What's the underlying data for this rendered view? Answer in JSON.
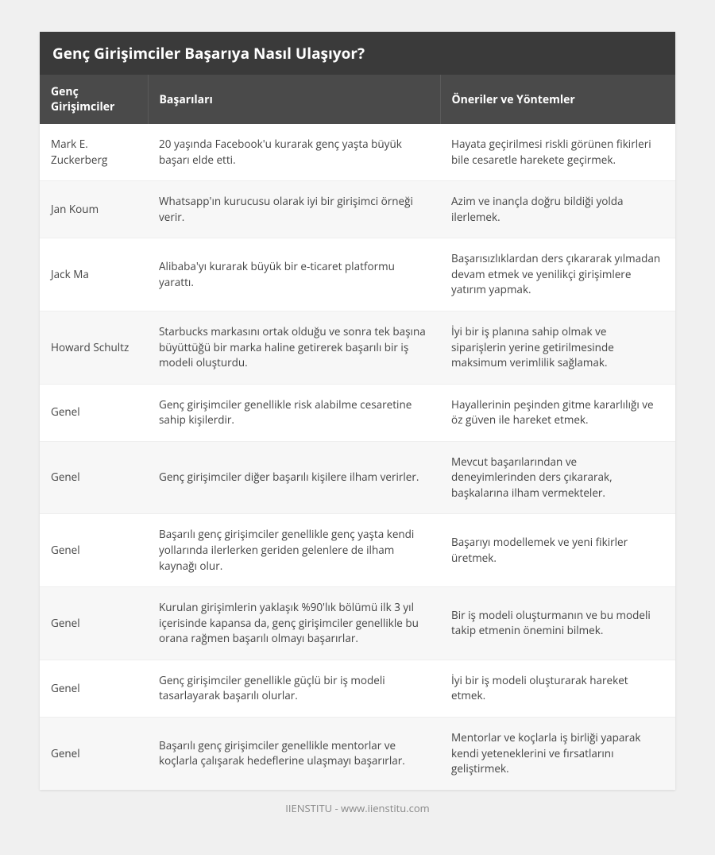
{
  "colors": {
    "page_bg": "#f0f0f0",
    "card_bg": "#ffffff",
    "title_bg": "#3a3a3a",
    "header_bg": "#4a4a4a",
    "header_border": "#5a5a5a",
    "row_alt_bg": "#f7f7f7",
    "row_border": "#eeeeee",
    "text": "#444444",
    "footer_text": "#888888",
    "white": "#ffffff"
  },
  "typography": {
    "title_fontsize": 19,
    "header_fontsize": 14,
    "cell_fontsize": 13.5,
    "footer_fontsize": 13,
    "font_family": "Open Sans, Segoe UI, Arial, sans-serif"
  },
  "layout": {
    "col_widths": [
      "17%",
      "46%",
      "37%"
    ]
  },
  "title": "Genç Girişimciler Başarıya Nasıl Ulaşıyor?",
  "table": {
    "type": "table",
    "columns": [
      {
        "key": "name",
        "label": "Genç Girişimciler"
      },
      {
        "key": "success",
        "label": "Başarıları"
      },
      {
        "key": "advice",
        "label": "Öneriler ve Yöntemler"
      }
    ],
    "rows": [
      {
        "name": "Mark E. Zuckerberg",
        "success": "20 yaşında Facebook'u kurarak genç yaşta büyük başarı elde etti.",
        "advice": "Hayata geçirilmesi riskli görünen fikirleri bile cesaretle harekete geçirmek."
      },
      {
        "name": "Jan Koum",
        "success": "Whatsapp'ın kurucusu olarak iyi bir girişimci örneği verir.",
        "advice": "Azim ve inançla doğru bildiği yolda ilerlemek."
      },
      {
        "name": "Jack Ma",
        "success": "Alibaba'yı kurarak büyük bir e-ticaret platformu yarattı.",
        "advice": "Başarısızlıklardan ders çıkararak yılmadan devam etmek ve yenilikçi girişimlere yatırım yapmak."
      },
      {
        "name": "Howard Schultz",
        "success": "Starbucks markasını ortak olduğu ve sonra tek başına büyüttüğü bir marka haline getirerek başarılı bir iş modeli oluşturdu.",
        "advice": "İyi bir iş planına sahip olmak ve siparişlerin yerine getirilmesinde maksimum verimlilik sağlamak."
      },
      {
        "name": "Genel",
        "success": "Genç girişimciler genellikle risk alabilme cesaretine sahip kişilerdir.",
        "advice": "Hayallerinin peşinden gitme kararlılığı ve öz güven ile hareket etmek."
      },
      {
        "name": "Genel",
        "success": "Genç girişimciler diğer başarılı kişilere ilham verirler.",
        "advice": "Mevcut başarılarından ve deneyimlerinden ders çıkararak, başkalarına ilham vermekteler."
      },
      {
        "name": "Genel",
        "success": "Başarılı genç girişimciler genellikle genç yaşta kendi yollarında ilerlerken geriden gelenlere de ilham kaynağı olur.",
        "advice": "Başarıyı modellemek ve yeni fikirler üretmek."
      },
      {
        "name": "Genel",
        "success": "Kurulan girişimlerin yaklaşık %90'lık bölümü ilk 3 yıl içerisinde kapansa da, genç girişimciler genellikle bu orana rağmen başarılı olmayı başarırlar.",
        "advice": "Bir iş modeli oluşturmanın ve bu modeli takip etmenin önemini bilmek."
      },
      {
        "name": "Genel",
        "success": "Genç girişimciler genellikle güçlü bir iş modeli tasarlayarak başarılı olurlar.",
        "advice": "İyi bir iş modeli oluşturarak hareket etmek."
      },
      {
        "name": "Genel",
        "success": "Başarılı genç girişimciler genellikle mentorlar ve koçlarla çalışarak hedeflerine ulaşmayı başarırlar.",
        "advice": "Mentorlar ve koçlarla iş birliği yaparak kendi yeteneklerini ve fırsatlarını geliştirmek."
      }
    ]
  },
  "footer": "IIENSTITU - www.iienstitu.com"
}
